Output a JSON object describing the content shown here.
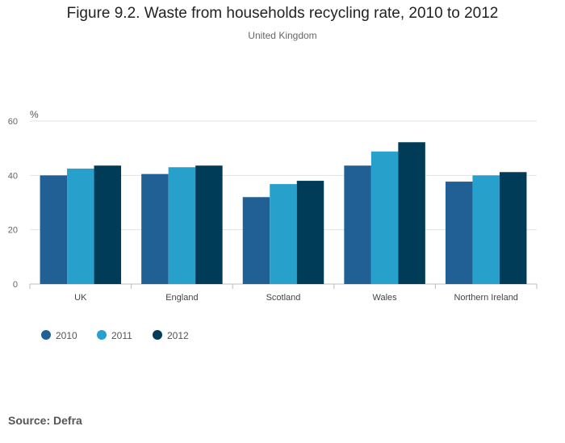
{
  "chart_data": {
    "type": "bar",
    "title": "Figure 9.2. Waste from households recycling rate, 2010 to 2012",
    "subtitle": "United Kingdom",
    "ylabel": "%",
    "xlabel": "",
    "ylim": [
      0,
      60
    ],
    "yticks": [
      0,
      20,
      40,
      60
    ],
    "categories": [
      "UK",
      "England",
      "Scotland",
      "Wales",
      "Northern Ireland"
    ],
    "series": [
      {
        "name": "2010",
        "color": "#206095",
        "values": [
          40.0,
          40.5,
          32.0,
          43.6,
          37.7
        ]
      },
      {
        "name": "2011",
        "color": "#27a0cc",
        "values": [
          42.5,
          43.0,
          36.8,
          48.8,
          40.0
        ]
      },
      {
        "name": "2012",
        "color": "#003c57",
        "values": [
          43.6,
          43.6,
          38.0,
          52.2,
          41.2
        ]
      }
    ],
    "legend": "bottom-left",
    "grid": true
  },
  "source": "Source: Defra"
}
